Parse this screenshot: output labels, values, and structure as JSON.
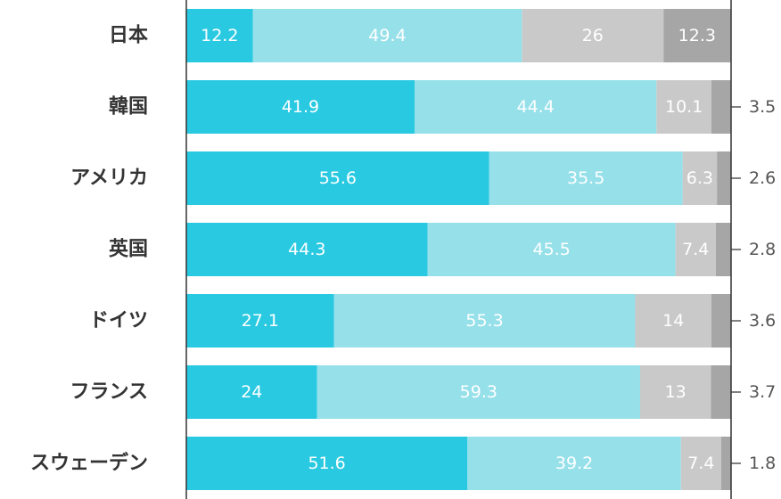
{
  "chart_data": {
    "type": "bar",
    "orientation": "horizontal",
    "stacked": true,
    "categories": [
      "日本",
      "韓国",
      "アメリカ",
      "英国",
      "ドイツ",
      "フランス",
      "スウェーデン"
    ],
    "series": [
      {
        "values": [
          12.2,
          41.9,
          55.6,
          44.3,
          27.1,
          24,
          51.6
        ],
        "color": "#29C9E2"
      },
      {
        "values": [
          49.4,
          44.4,
          35.5,
          45.5,
          55.3,
          59.3,
          39.2
        ],
        "color": "#96E0EA"
      },
      {
        "values": [
          26,
          10.1,
          6.3,
          7.4,
          14,
          13,
          7.4
        ],
        "color": "#C9C9C9"
      },
      {
        "values": [
          12.3,
          3.5,
          2.6,
          2.8,
          3.6,
          3.7,
          1.8
        ],
        "color": "#A6A6A6"
      }
    ],
    "xlim": [
      0,
      100
    ],
    "grid": false,
    "legend": "none"
  }
}
